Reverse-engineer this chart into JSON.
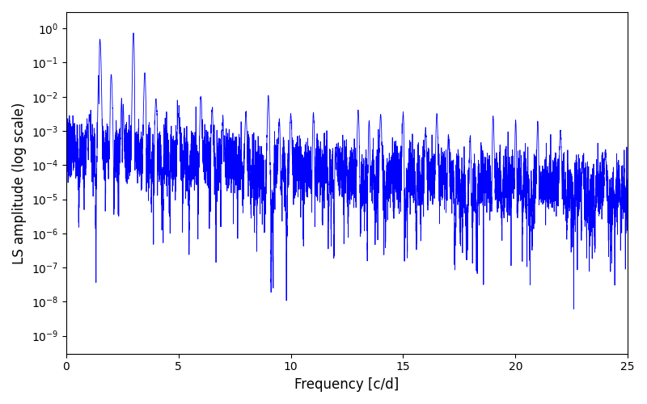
{
  "xlabel": "Frequency [c/d]",
  "ylabel": "LS amplitude (log scale)",
  "xlim": [
    0,
    25
  ],
  "ylim": [
    3e-10,
    3.0
  ],
  "line_color": "#0000ff",
  "line_width": 0.6,
  "background_color": "#ffffff",
  "yscale": "log",
  "figsize": [
    8.0,
    5.0
  ],
  "dpi": 100,
  "seed": 7,
  "n_points": 8000,
  "freq_max": 25.0
}
